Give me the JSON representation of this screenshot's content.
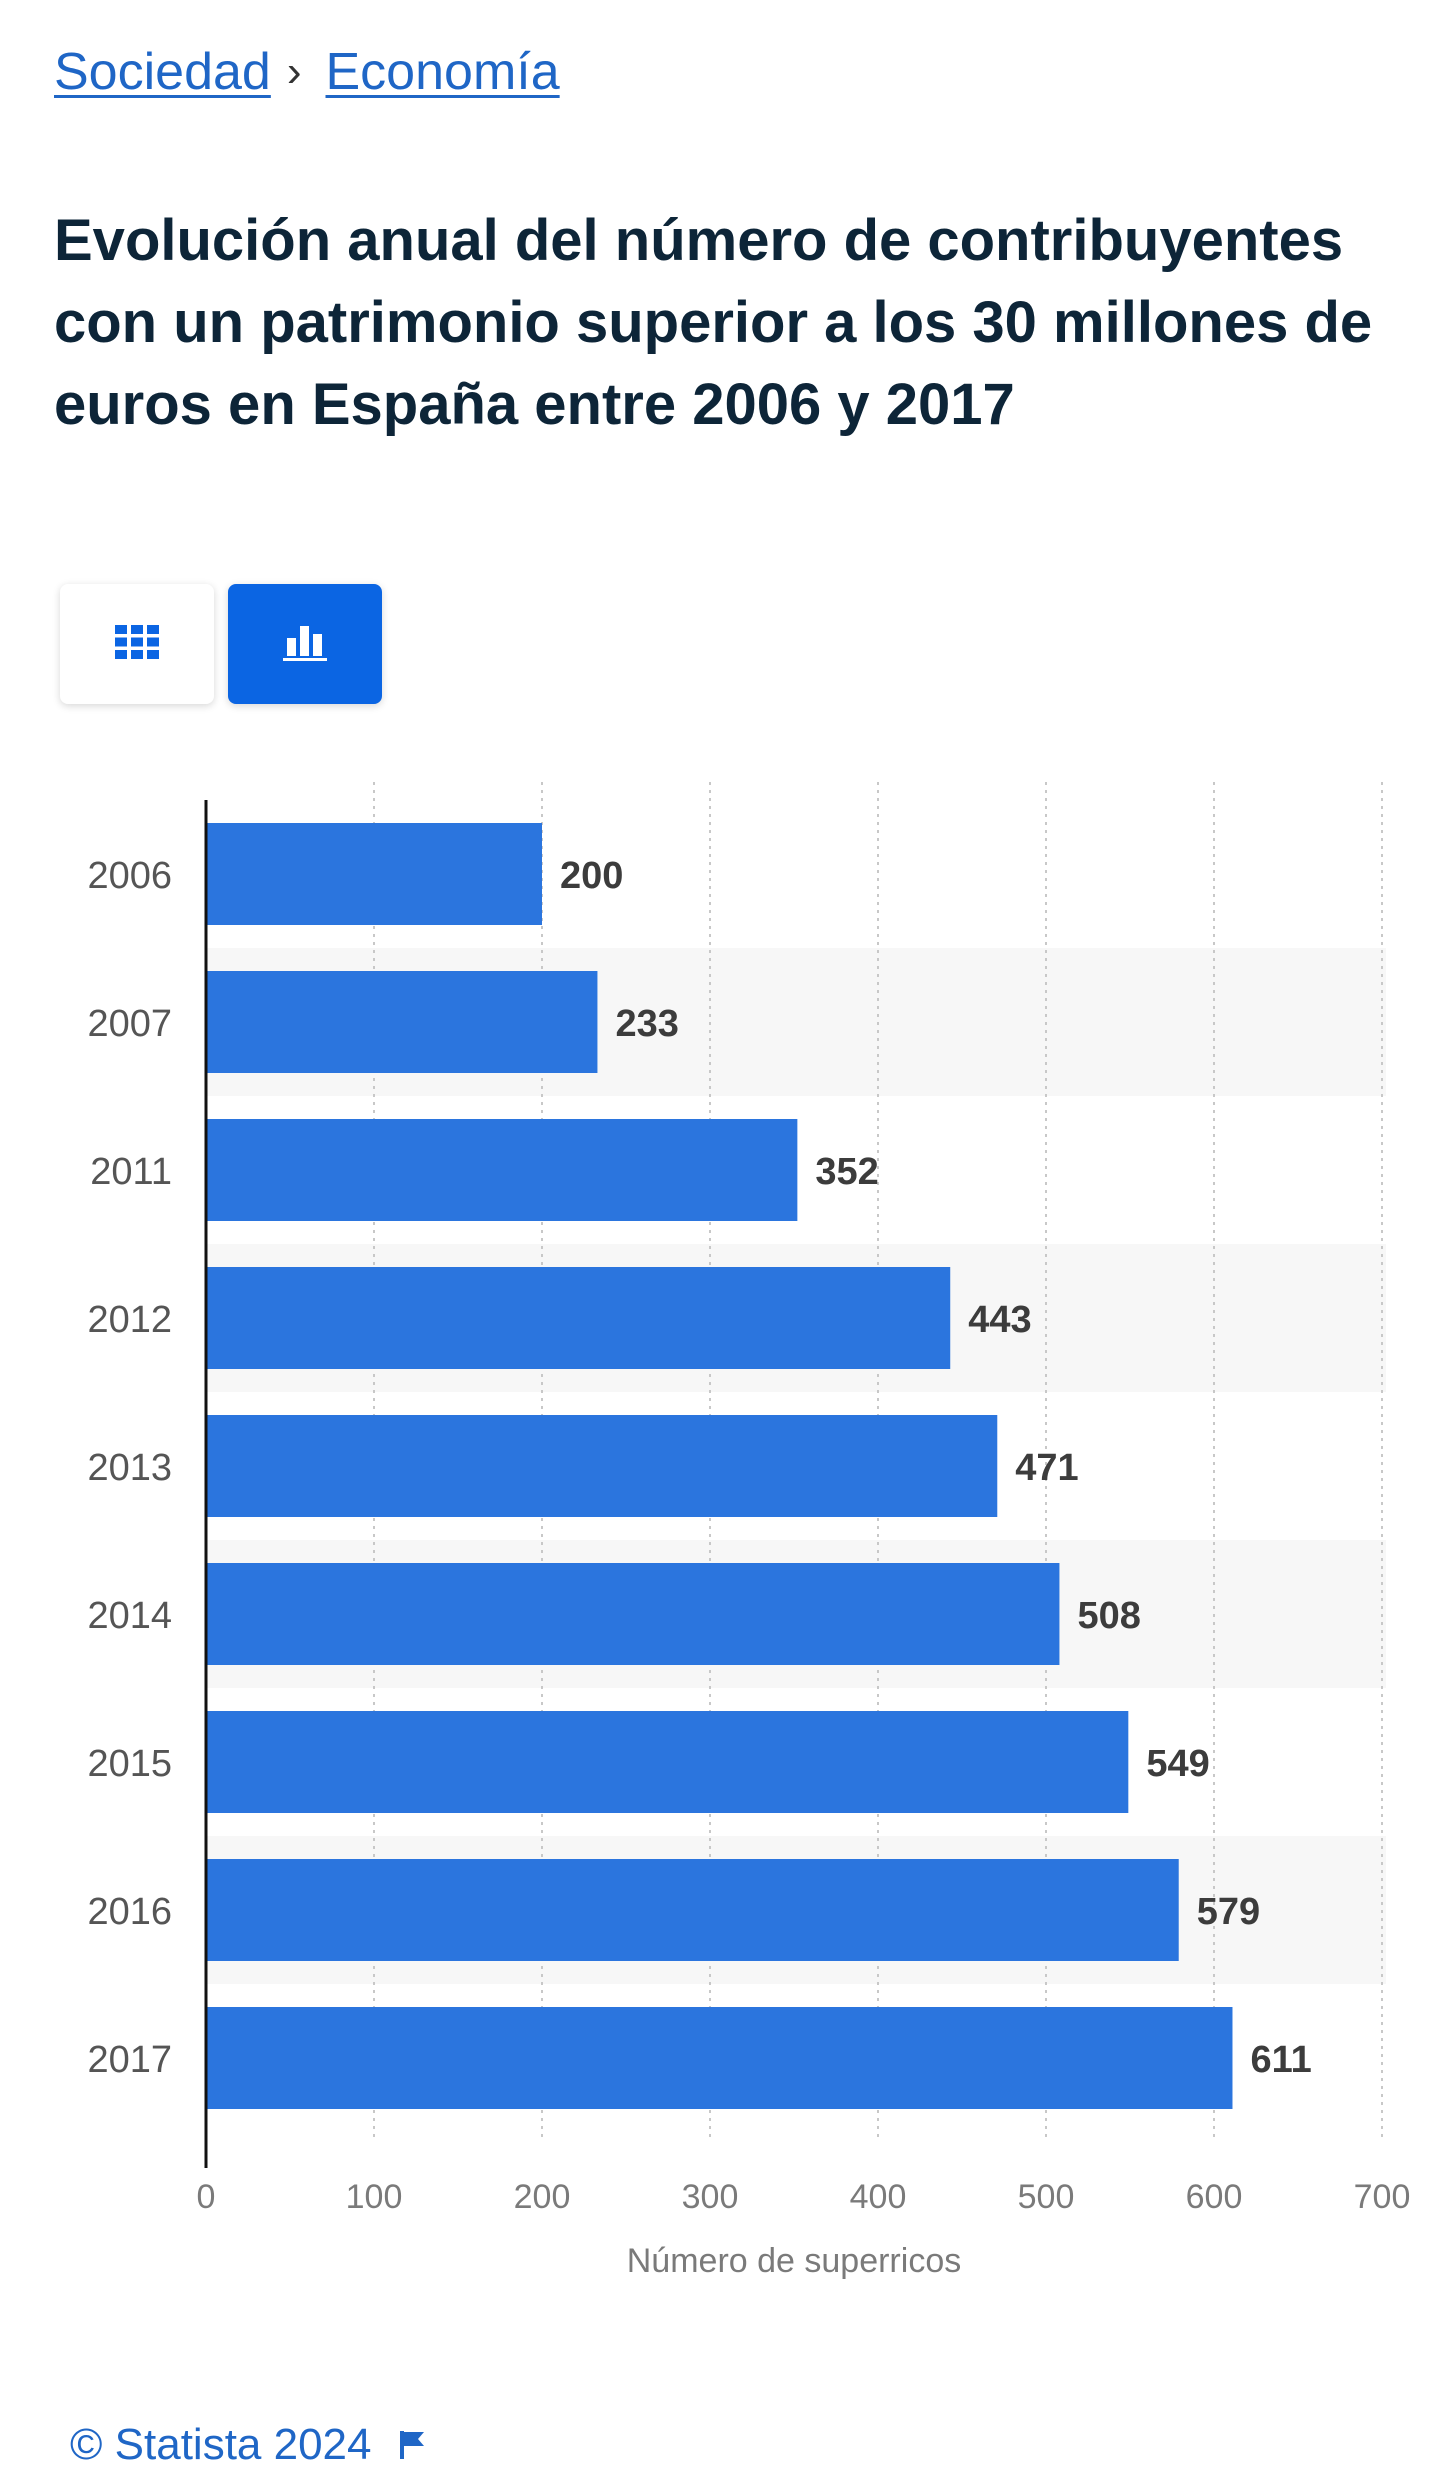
{
  "breadcrumb": {
    "items": [
      "Sociedad",
      "Economía"
    ],
    "separator": "›"
  },
  "title": "Evolución anual del número de contribuyentes con un patrimonio superior a los 30 millones de euros en España entre 2006 y 2017",
  "view_toggle": {
    "options": [
      {
        "icon": "table-grid-icon",
        "active": false
      },
      {
        "icon": "bar-chart-icon",
        "active": true
      }
    ]
  },
  "colors": {
    "bar": "#2b75de",
    "active_toggle": "#0b65e3",
    "link": "#1f66c6",
    "alt_row": "#f7f7f7"
  },
  "chart_data": {
    "type": "bar",
    "orientation": "horizontal",
    "categories": [
      "2006",
      "2007",
      "2011",
      "2012",
      "2013",
      "2014",
      "2015",
      "2016",
      "2017"
    ],
    "values": [
      200,
      233,
      352,
      443,
      471,
      508,
      549,
      579,
      611
    ],
    "xlabel": "Número de superricos",
    "ylabel": "",
    "xlim": [
      0,
      700
    ],
    "ticks": [
      0,
      100,
      200,
      300,
      400,
      500,
      600,
      700
    ],
    "grid": true,
    "data_labels": true
  },
  "footer": {
    "copyright": "© Statista 2024",
    "flag_icon": "flag-icon"
  }
}
